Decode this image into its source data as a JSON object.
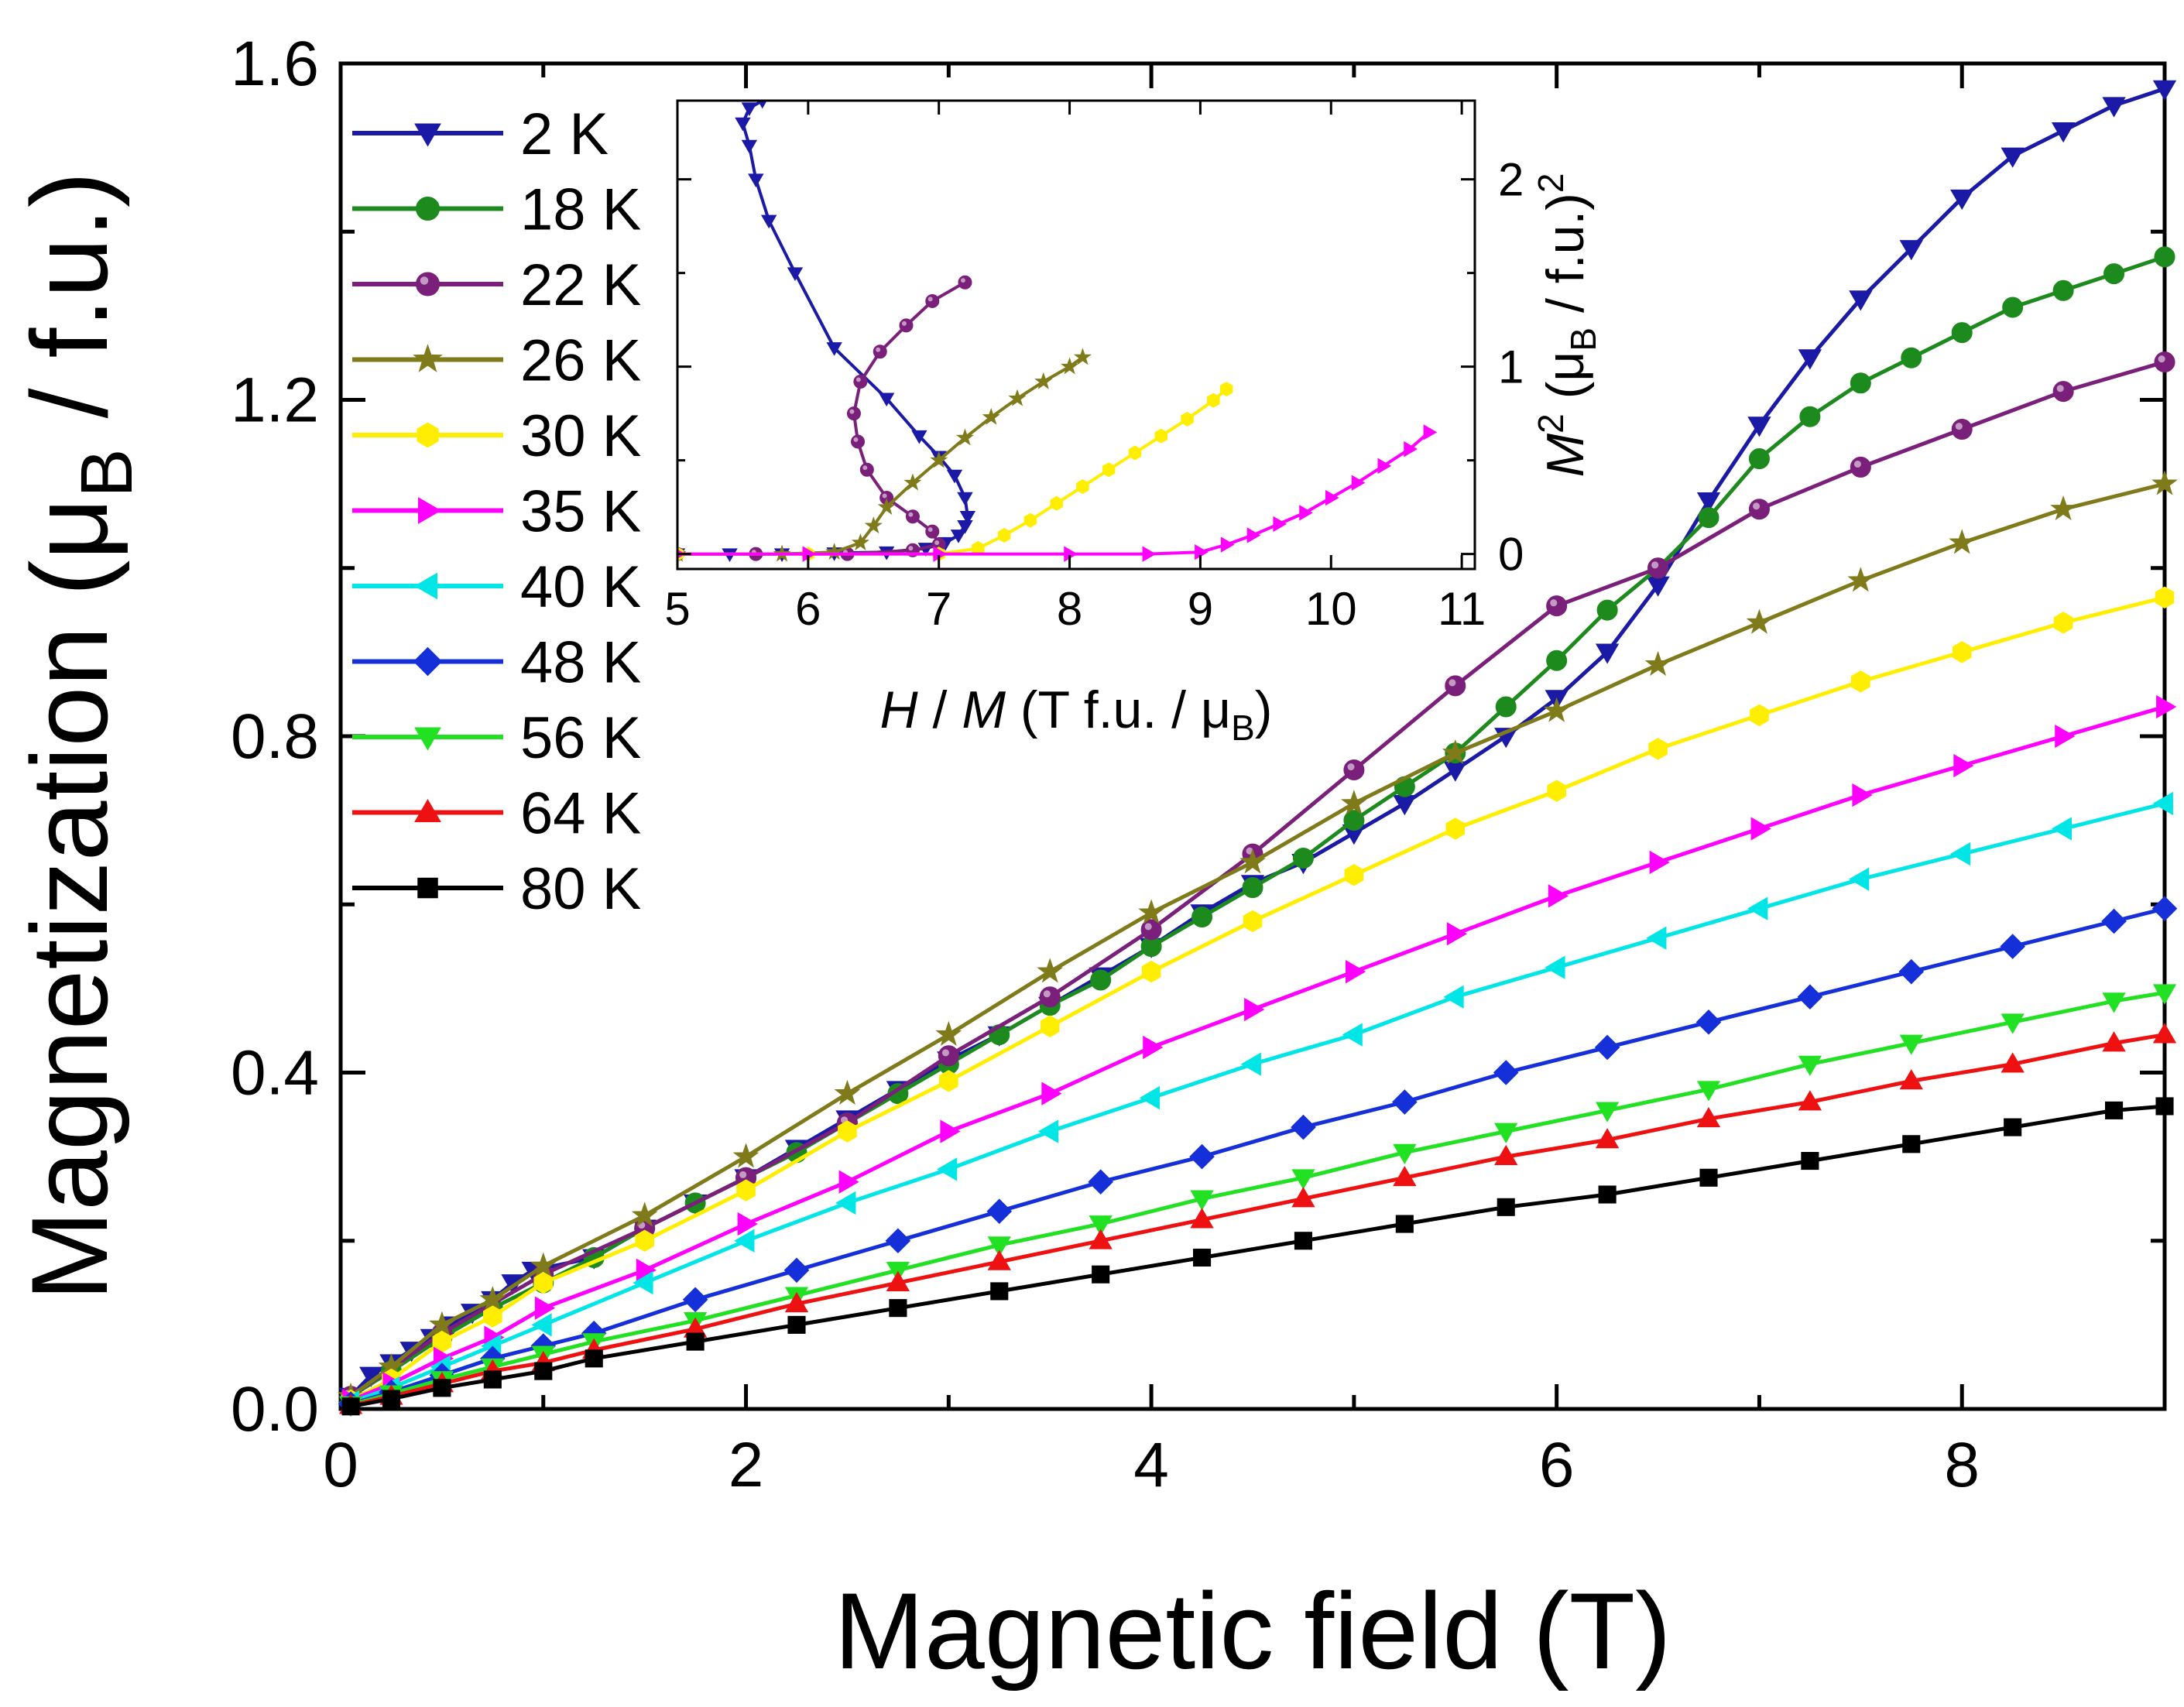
{
  "chart_data": [
    {
      "type": "line",
      "role": "main",
      "title": "",
      "xlabel": "Magnetic field (T)",
      "ylabel": "Magnetization (μ_B / f.u.)",
      "ylabel_parts": {
        "main": "Magnetization (μ",
        "sub": "B",
        "tail": " / f.u.)"
      },
      "xlim": [
        0,
        9
      ],
      "ylim": [
        0,
        1.6
      ],
      "xticks": [
        0,
        2,
        4,
        6,
        8
      ],
      "xtick_labels": [
        "0",
        "2",
        "4",
        "6",
        "8"
      ],
      "yticks": [
        0.0,
        0.4,
        0.8,
        1.2,
        1.6
      ],
      "ytick_labels": [
        "0.0",
        "0.4",
        "0.8",
        "1.2",
        "1.6"
      ],
      "legend_position": "top-left",
      "series": [
        {
          "name": "2 K",
          "color": "#1a1aa6",
          "marker": "triangle-down",
          "x": [
            0.05,
            0.15,
            0.25,
            0.35,
            0.45,
            0.55,
            0.65,
            0.75,
            0.85,
            0.95,
            1.25,
            1.5,
            1.75,
            2.0,
            2.25,
            2.5,
            2.75,
            3.0,
            3.25,
            3.5,
            3.75,
            4.0,
            4.25,
            4.5,
            4.75,
            5.0,
            5.25,
            5.5,
            5.75,
            6.0,
            6.25,
            6.5,
            6.75,
            7.0,
            7.25,
            7.5,
            7.75,
            8.0,
            8.25,
            8.5,
            8.75,
            9.0
          ],
          "y": [
            0.015,
            0.04,
            0.055,
            0.07,
            0.085,
            0.1,
            0.115,
            0.13,
            0.15,
            0.165,
            0.18,
            0.215,
            0.245,
            0.275,
            0.31,
            0.345,
            0.38,
            0.415,
            0.445,
            0.48,
            0.515,
            0.55,
            0.59,
            0.625,
            0.65,
            0.685,
            0.72,
            0.76,
            0.8,
            0.845,
            0.9,
            0.98,
            1.08,
            1.17,
            1.25,
            1.32,
            1.38,
            1.44,
            1.49,
            1.52,
            1.55,
            1.57
          ]
        },
        {
          "name": "18 K",
          "color": "#1c8a1c",
          "marker": "circle",
          "x": [
            0.05,
            0.25,
            0.5,
            0.75,
            1.0,
            1.25,
            1.5,
            1.75,
            2.0,
            2.25,
            2.5,
            2.75,
            3.0,
            3.25,
            3.5,
            3.75,
            4.0,
            4.25,
            4.5,
            4.75,
            5.0,
            5.25,
            5.5,
            5.75,
            6.0,
            6.25,
            6.5,
            6.75,
            7.0,
            7.25,
            7.5,
            7.75,
            8.0,
            8.25,
            8.5,
            8.75,
            9.0
          ],
          "y": [
            0.015,
            0.045,
            0.085,
            0.12,
            0.15,
            0.18,
            0.215,
            0.245,
            0.275,
            0.305,
            0.34,
            0.375,
            0.41,
            0.445,
            0.48,
            0.51,
            0.55,
            0.585,
            0.62,
            0.655,
            0.7,
            0.74,
            0.78,
            0.835,
            0.89,
            0.95,
            1.0,
            1.06,
            1.13,
            1.18,
            1.22,
            1.25,
            1.28,
            1.31,
            1.33,
            1.35,
            1.37
          ]
        },
        {
          "name": "22 K",
          "color": "#7a1f7a",
          "marker": "sphere",
          "x": [
            0.05,
            0.5,
            1.0,
            1.5,
            2.0,
            2.5,
            3.0,
            3.5,
            4.0,
            4.5,
            5.0,
            5.5,
            6.0,
            6.5,
            7.0,
            7.5,
            8.0,
            8.5,
            9.0
          ],
          "y": [
            0.015,
            0.09,
            0.16,
            0.215,
            0.275,
            0.34,
            0.42,
            0.49,
            0.57,
            0.66,
            0.76,
            0.86,
            0.955,
            1.0,
            1.07,
            1.12,
            1.165,
            1.21,
            1.245
          ]
        },
        {
          "name": "26 K",
          "color": "#7f7a1a",
          "marker": "star",
          "x": [
            0.05,
            0.25,
            0.5,
            0.75,
            1.0,
            1.5,
            2.0,
            2.5,
            3.0,
            3.5,
            4.0,
            4.5,
            5.0,
            5.5,
            6.0,
            6.5,
            7.0,
            7.5,
            8.0,
            8.5,
            9.0
          ],
          "y": [
            0.015,
            0.05,
            0.1,
            0.13,
            0.17,
            0.23,
            0.3,
            0.375,
            0.445,
            0.52,
            0.59,
            0.65,
            0.72,
            0.78,
            0.83,
            0.885,
            0.935,
            0.985,
            1.03,
            1.07,
            1.1
          ]
        },
        {
          "name": "30 K",
          "color": "#ffee00",
          "marker": "hexagon",
          "x": [
            0.05,
            0.25,
            0.5,
            0.75,
            1.0,
            1.5,
            2.0,
            2.5,
            3.0,
            3.5,
            4.0,
            4.5,
            5.0,
            5.5,
            6.0,
            6.5,
            7.0,
            7.5,
            8.0,
            8.5,
            9.0
          ],
          "y": [
            0.01,
            0.035,
            0.08,
            0.11,
            0.15,
            0.2,
            0.26,
            0.33,
            0.39,
            0.455,
            0.52,
            0.58,
            0.635,
            0.69,
            0.735,
            0.785,
            0.825,
            0.865,
            0.9,
            0.935,
            0.965
          ]
        },
        {
          "name": "35 K",
          "color": "#ff00ff",
          "marker": "triangle-right",
          "x": [
            0.05,
            0.25,
            0.5,
            0.75,
            1.0,
            1.5,
            2.0,
            2.5,
            3.0,
            3.5,
            4.0,
            4.5,
            5.0,
            5.5,
            6.0,
            6.5,
            7.0,
            7.5,
            8.0,
            8.5,
            9.0
          ],
          "y": [
            0.01,
            0.03,
            0.06,
            0.085,
            0.12,
            0.165,
            0.22,
            0.27,
            0.33,
            0.375,
            0.43,
            0.475,
            0.52,
            0.565,
            0.61,
            0.65,
            0.69,
            0.73,
            0.765,
            0.8,
            0.835
          ]
        },
        {
          "name": "40 K",
          "color": "#00e5e5",
          "marker": "triangle-left",
          "x": [
            0.05,
            0.25,
            0.5,
            0.75,
            1.0,
            1.5,
            2.0,
            2.5,
            3.0,
            3.5,
            4.0,
            4.5,
            5.0,
            5.5,
            6.0,
            6.5,
            7.0,
            7.5,
            8.0,
            8.5,
            9.0
          ],
          "y": [
            0.008,
            0.025,
            0.05,
            0.075,
            0.1,
            0.15,
            0.2,
            0.245,
            0.285,
            0.33,
            0.37,
            0.41,
            0.445,
            0.49,
            0.525,
            0.56,
            0.595,
            0.63,
            0.66,
            0.69,
            0.72
          ]
        },
        {
          "name": "48 K",
          "color": "#1530d8",
          "marker": "diamond",
          "x": [
            0.05,
            0.25,
            0.5,
            0.75,
            1.0,
            1.25,
            1.75,
            2.25,
            2.75,
            3.25,
            3.75,
            4.25,
            4.75,
            5.25,
            5.75,
            6.25,
            6.75,
            7.25,
            7.75,
            8.25,
            8.75,
            9.0
          ],
          "y": [
            0.006,
            0.02,
            0.04,
            0.06,
            0.075,
            0.09,
            0.13,
            0.165,
            0.2,
            0.235,
            0.27,
            0.3,
            0.335,
            0.365,
            0.4,
            0.43,
            0.46,
            0.49,
            0.52,
            0.55,
            0.58,
            0.595
          ]
        },
        {
          "name": "56 K",
          "color": "#22e022",
          "marker": "triangle-down",
          "x": [
            0.05,
            0.25,
            0.5,
            0.75,
            1.0,
            1.25,
            1.75,
            2.25,
            2.75,
            3.25,
            3.75,
            4.25,
            4.75,
            5.25,
            5.75,
            6.25,
            6.75,
            7.25,
            7.75,
            8.25,
            8.75,
            9.0
          ],
          "y": [
            0.005,
            0.018,
            0.035,
            0.05,
            0.065,
            0.08,
            0.105,
            0.135,
            0.165,
            0.195,
            0.22,
            0.25,
            0.275,
            0.305,
            0.33,
            0.355,
            0.38,
            0.41,
            0.435,
            0.46,
            0.485,
            0.495
          ]
        },
        {
          "name": "64 K",
          "color": "#ee1111",
          "marker": "triangle-up",
          "x": [
            0.05,
            0.25,
            0.5,
            0.75,
            1.0,
            1.25,
            1.75,
            2.25,
            2.75,
            3.25,
            3.75,
            4.25,
            4.75,
            5.25,
            5.75,
            6.25,
            6.75,
            7.25,
            7.75,
            8.25,
            8.75,
            9.0
          ],
          "y": [
            0.004,
            0.015,
            0.03,
            0.045,
            0.055,
            0.07,
            0.095,
            0.125,
            0.15,
            0.175,
            0.2,
            0.225,
            0.25,
            0.275,
            0.3,
            0.32,
            0.345,
            0.365,
            0.39,
            0.41,
            0.435,
            0.445
          ]
        },
        {
          "name": "80 K",
          "color": "#000000",
          "marker": "square",
          "x": [
            0.05,
            0.25,
            0.5,
            0.75,
            1.0,
            1.25,
            1.75,
            2.25,
            2.75,
            3.25,
            3.75,
            4.25,
            4.75,
            5.25,
            5.75,
            6.25,
            6.75,
            7.25,
            7.75,
            8.25,
            8.75,
            9.0
          ],
          "y": [
            0.003,
            0.012,
            0.025,
            0.035,
            0.045,
            0.06,
            0.08,
            0.1,
            0.12,
            0.14,
            0.16,
            0.18,
            0.2,
            0.22,
            0.24,
            0.255,
            0.275,
            0.295,
            0.315,
            0.335,
            0.355,
            0.36
          ]
        }
      ]
    },
    {
      "type": "line",
      "role": "inset",
      "title": "",
      "xlabel": "H / M (T f.u. / μ_B)",
      "xlabel_parts": {
        "h": "H",
        "sep": " / ",
        "m": "M",
        "unit": " (T f.u. / μ",
        "sub": "B",
        "close": ")"
      },
      "ylabel": "M² (μ_B / f.u.)²",
      "ylabel_parts": {
        "m": "M",
        "sup": "2",
        "unit": " (μ",
        "sub": "B",
        "tail": " / f.u.)",
        "sup2": "2"
      },
      "xlim": [
        5,
        11.1
      ],
      "ylim": [
        -0.08,
        2.42
      ],
      "xticks": [
        5,
        6,
        7,
        8,
        9,
        10,
        11
      ],
      "xtick_labels": [
        "5",
        "6",
        "7",
        "8",
        "9",
        "10",
        "11"
      ],
      "yticks": [
        0,
        1,
        2
      ],
      "ytick_labels": [
        "0",
        "1",
        "2"
      ],
      "series": [
        {
          "name": "2 K",
          "color": "#1a1aa6",
          "marker": "triangle-down",
          "x": [
            5.0,
            5.4,
            5.8,
            6.2,
            6.6,
            6.9,
            7.05,
            7.15,
            7.2,
            7.22,
            7.2,
            7.12,
            7.0,
            6.85,
            6.6,
            6.2,
            5.9,
            5.7,
            5.6,
            5.55,
            5.5,
            5.55,
            5.65
          ],
          "y": [
            0.0,
            0.0,
            0.0,
            0.005,
            0.01,
            0.03,
            0.06,
            0.1,
            0.15,
            0.2,
            0.3,
            0.42,
            0.52,
            0.63,
            0.83,
            1.1,
            1.5,
            1.78,
            2.0,
            2.18,
            2.3,
            2.38,
            2.42
          ]
        },
        {
          "name": "22 K",
          "color": "#7a1f7a",
          "marker": "sphere",
          "x": [
            5.0,
            5.6,
            6.3,
            6.8,
            7.0,
            6.95,
            6.8,
            6.6,
            6.45,
            6.38,
            6.35,
            6.4,
            6.55,
            6.75,
            6.95,
            7.2
          ],
          "y": [
            0.0,
            0.0,
            0.0,
            0.02,
            0.05,
            0.12,
            0.2,
            0.3,
            0.45,
            0.6,
            0.75,
            0.92,
            1.08,
            1.22,
            1.35,
            1.45
          ]
        },
        {
          "name": "26 K",
          "color": "#7f7a1a",
          "marker": "star",
          "x": [
            5.0,
            5.8,
            6.2,
            6.4,
            6.5,
            6.6,
            6.8,
            7.0,
            7.2,
            7.4,
            7.6,
            7.8,
            8.0,
            8.1
          ],
          "y": [
            0.0,
            0.0,
            0.01,
            0.06,
            0.15,
            0.25,
            0.38,
            0.5,
            0.62,
            0.73,
            0.83,
            0.92,
            1.0,
            1.05
          ]
        },
        {
          "name": "30 K",
          "color": "#ffee00",
          "marker": "hexagon",
          "x": [
            5.0,
            6.0,
            7.0,
            7.3,
            7.5,
            7.7,
            7.9,
            8.1,
            8.3,
            8.5,
            8.7,
            8.9,
            9.1,
            9.2
          ],
          "y": [
            0.0,
            0.0,
            0.0,
            0.03,
            0.1,
            0.18,
            0.27,
            0.36,
            0.45,
            0.54,
            0.63,
            0.72,
            0.82,
            0.88
          ]
        },
        {
          "name": "35 K",
          "color": "#ff00ff",
          "marker": "triangle-right",
          "x": [
            5.0,
            6.0,
            7.0,
            8.0,
            8.6,
            9.0,
            9.2,
            9.4,
            9.6,
            9.8,
            10.0,
            10.2,
            10.4,
            10.6,
            10.75
          ],
          "y": [
            0.0,
            0.0,
            0.0,
            0.0,
            0.0,
            0.01,
            0.05,
            0.1,
            0.16,
            0.22,
            0.3,
            0.38,
            0.47,
            0.56,
            0.65
          ]
        }
      ]
    }
  ]
}
